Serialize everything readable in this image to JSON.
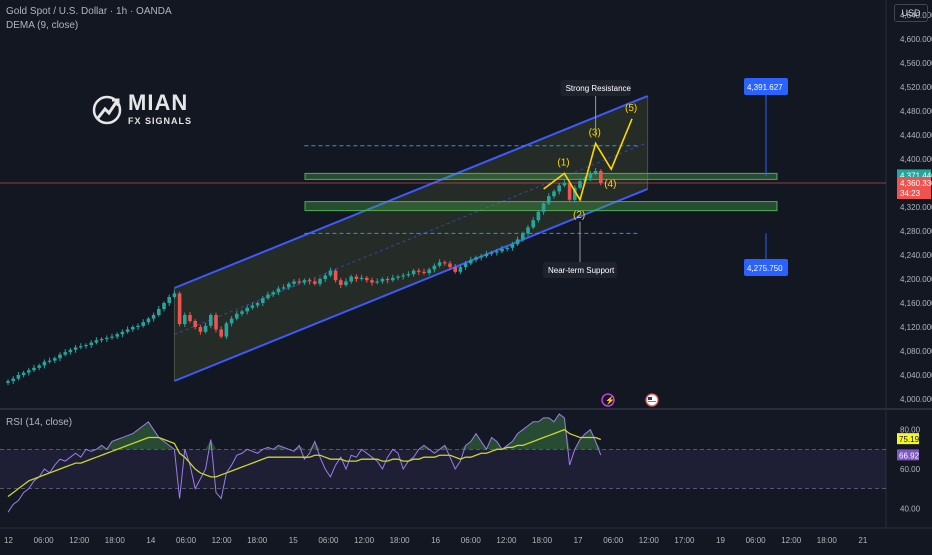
{
  "header": {
    "symbol_line": "Gold Spot / U.S. Dollar · 1h · OANDA",
    "indicator_line": "DEMA (9, close)",
    "rsi_line": "RSI (14, close)",
    "currency_button": "USD"
  },
  "logo": {
    "main": "MIAN",
    "sub": "FX SIGNALS"
  },
  "colors": {
    "background": "#131722",
    "up": "#26a69a",
    "down": "#ef5350",
    "channel": "#3d5afe",
    "zone": "#4caf50",
    "wave": "#ffd600",
    "rsi": "#9c7ee8",
    "rsi_ma": "#c9d62b",
    "label_box": "#2962ff"
  },
  "chart_data": [
    {
      "type": "candlestick",
      "title": "Gold Spot / U.S. Dollar · 1h · OANDA",
      "y_ticks": [
        4000,
        4040,
        4080,
        4120,
        4160,
        4200,
        4240,
        4280,
        4320,
        4360,
        4400,
        4440,
        4480,
        4520,
        4560,
        4600,
        4640
      ],
      "y_tick_labels": [
        "4,000.000",
        "4,040.000",
        "4,080.000",
        "4,120.000",
        "4,160.000",
        "4,200.000",
        "4,240.000",
        "4,280.000",
        "4,320.000",
        "4,360.000",
        "4,400.000",
        "4,440.000",
        "4,480.000",
        "4,520.000",
        "4,560.000",
        "4,600.000",
        "4,640.000"
      ],
      "ylim": [
        3985,
        4665
      ],
      "x_labels": [
        "12",
        "06:00",
        "12:00",
        "18:00",
        "14",
        "06:00",
        "12:00",
        "18:00",
        "15",
        "06:00",
        "12:00",
        "18:00",
        "16",
        "06:00",
        "12:00",
        "18:00",
        "17",
        "06:00",
        "12:00",
        "17:00",
        "19",
        "06:00",
        "12:00",
        "18:00",
        "21"
      ],
      "close_path": [
        4030,
        4034,
        4040,
        4044,
        4048,
        4052,
        4056,
        4062,
        4064,
        4068,
        4074,
        4078,
        4082,
        4086,
        4088,
        4090,
        4094,
        4098,
        4100,
        4102,
        4104,
        4108,
        4112,
        4116,
        4120,
        4122,
        4128,
        4134,
        4140,
        4150,
        4160,
        4170,
        4176,
        4125,
        4140,
        4130,
        4120,
        4112,
        4122,
        4140,
        4116,
        4104,
        4126,
        4134,
        4142,
        4146,
        4152,
        4156,
        4160,
        4168,
        4174,
        4178,
        4184,
        4186,
        4192,
        4196,
        4194,
        4198,
        4196,
        4192,
        4200,
        4206,
        4214,
        4198,
        4190,
        4196,
        4204,
        4200,
        4202,
        4198,
        4194,
        4196,
        4200,
        4198,
        4202,
        4204,
        4206,
        4208,
        4214,
        4212,
        4210,
        4216,
        4222,
        4228,
        4226,
        4220,
        4212,
        4220,
        4226,
        4232,
        4236,
        4238,
        4242,
        4244,
        4246,
        4250,
        4252,
        4258,
        4266,
        4276,
        4286,
        4298,
        4312,
        4326,
        4338,
        4346,
        4356,
        4360,
        4332,
        4352,
        4363,
        4368,
        4376,
        4380,
        4360
      ],
      "last_close_index": 114,
      "series": [
        {
          "name": "Gold Spot / U.S. Dollar",
          "current_price": "4,360.330",
          "countdown": "34:23",
          "marker_price": "4,371.440"
        }
      ],
      "channel": {
        "upper": [
          [
            32,
            4185
          ],
          [
            123,
            4505
          ]
        ],
        "lower": [
          [
            32,
            4030
          ],
          [
            123,
            4350
          ]
        ]
      },
      "zones": [
        {
          "from": 4366,
          "to": 4376
        },
        {
          "from": 4314,
          "to": 4329
        }
      ],
      "dashed_levels": [
        4422,
        4276
      ],
      "elliott_wave": {
        "points": [
          [
            103,
            4350
          ],
          [
            107,
            4376
          ],
          [
            110,
            4332
          ],
          [
            113,
            4426
          ],
          [
            116,
            4383
          ],
          [
            120,
            4467
          ]
        ],
        "labels": [
          "(1)",
          "(2)",
          "(3)",
          "(4)",
          "(5)"
        ]
      },
      "annotations": {
        "strong_resistance": "Strong Resistance",
        "near_term_support": "Near-term Support",
        "upper_target": "4,391.627",
        "lower_target": "4,275.750"
      }
    },
    {
      "type": "line",
      "title": "RSI (14, close)",
      "y_ticks": [
        40,
        60,
        80
      ],
      "y_tick_labels": [
        "40.00",
        "60.00",
        "80.00"
      ],
      "ylim": [
        30,
        90
      ],
      "band": [
        70,
        50
      ],
      "series": [
        {
          "name": "RSI",
          "last_label": "66.92",
          "values": [
            38,
            42,
            44,
            48,
            50,
            54,
            56,
            60,
            58,
            62,
            65,
            64,
            66,
            68,
            66,
            70,
            69,
            70,
            72,
            70,
            74,
            75,
            76,
            77,
            78,
            80,
            82,
            84,
            80,
            76,
            74,
            72,
            70,
            45,
            70,
            62,
            50,
            55,
            60,
            75,
            48,
            45,
            58,
            62,
            67,
            68,
            70,
            69,
            68,
            70,
            71,
            70,
            72,
            71,
            70,
            69,
            72,
            65,
            68,
            74,
            66,
            60,
            56,
            62,
            66,
            60,
            67,
            66,
            70,
            68,
            66,
            64,
            60,
            66,
            70,
            68,
            60,
            64,
            66,
            70,
            72,
            70,
            68,
            70,
            72,
            66,
            60,
            64,
            72,
            74,
            78,
            74,
            70,
            76,
            74,
            70,
            72,
            74,
            78,
            80,
            82,
            84,
            84,
            86,
            86,
            84,
            88,
            86,
            62,
            70,
            75,
            78,
            80,
            74,
            67
          ]
        },
        {
          "name": "RSI MA",
          "last_label": "75.19",
          "values": [
            46,
            48,
            50,
            52,
            54,
            55,
            56,
            57,
            58,
            59,
            60,
            61,
            62,
            63,
            63,
            64,
            65,
            66,
            67,
            68,
            69,
            70,
            71,
            72,
            73,
            74,
            75,
            76,
            76,
            76,
            75,
            74,
            73,
            68,
            66,
            63,
            60,
            58,
            57,
            56,
            56,
            57,
            58,
            59,
            60,
            61,
            62,
            63,
            64,
            65,
            66,
            66,
            66,
            66,
            66,
            66,
            66,
            66,
            66,
            67,
            67,
            66,
            65,
            65,
            65,
            64,
            64,
            64,
            65,
            65,
            65,
            65,
            64,
            64,
            65,
            65,
            64,
            64,
            65,
            65,
            66,
            66,
            66,
            67,
            67,
            67,
            66,
            65,
            66,
            66,
            67,
            68,
            68,
            69,
            70,
            70,
            71,
            71,
            72,
            72,
            73,
            74,
            75,
            76,
            77,
            78,
            79,
            80,
            78,
            77,
            76,
            76,
            76,
            76,
            75
          ]
        }
      ]
    }
  ],
  "events": [
    {
      "icon": "lightning-icon"
    },
    {
      "icon": "us-flag-icon"
    }
  ]
}
